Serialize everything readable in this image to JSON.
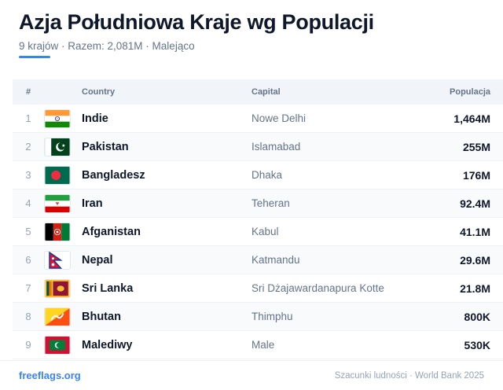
{
  "header": {
    "title": "Azja Południowa Kraje wg Populacji",
    "subtitle": "9 krajów · Razem: 2,081M · Malejąco"
  },
  "table": {
    "columns": {
      "num": "#",
      "country": "Country",
      "capital": "Capital",
      "population": "Populacja"
    },
    "rows": [
      {
        "rank": "1",
        "flag": "india-flag-icon",
        "country": "Indie",
        "capital": "Nowe Delhi",
        "population": "1,464M"
      },
      {
        "rank": "2",
        "flag": "pakistan-flag-icon",
        "country": "Pakistan",
        "capital": "Islamabad",
        "population": "255M"
      },
      {
        "rank": "3",
        "flag": "bangladesh-flag-icon",
        "country": "Bangladesz",
        "capital": "Dhaka",
        "population": "176M"
      },
      {
        "rank": "4",
        "flag": "iran-flag-icon",
        "country": "Iran",
        "capital": "Teheran",
        "population": "92.4M"
      },
      {
        "rank": "5",
        "flag": "afghanistan-flag-icon",
        "country": "Afganistan",
        "capital": "Kabul",
        "population": "41.1M"
      },
      {
        "rank": "6",
        "flag": "nepal-flag-icon",
        "country": "Nepal",
        "capital": "Katmandu",
        "population": "29.6M"
      },
      {
        "rank": "7",
        "flag": "sri-lanka-flag-icon",
        "country": "Sri Lanka",
        "capital": "Sri Dżajawardanapura Kotte",
        "population": "21.8M"
      },
      {
        "rank": "8",
        "flag": "bhutan-flag-icon",
        "country": "Bhutan",
        "capital": "Thimphu",
        "population": "800K"
      },
      {
        "rank": "9",
        "flag": "maldives-flag-icon",
        "country": "Malediwy",
        "capital": "Male",
        "population": "530K"
      }
    ]
  },
  "footer": {
    "link": "freeflags.org",
    "source": "Szacunki ludności · World Bank 2025"
  },
  "colors": {
    "accent": "#3b82f6",
    "title": "#0f172a",
    "muted": "#64748b",
    "header_bg": "#f1f5f9",
    "alt_row_bg": "#f8fafc"
  }
}
